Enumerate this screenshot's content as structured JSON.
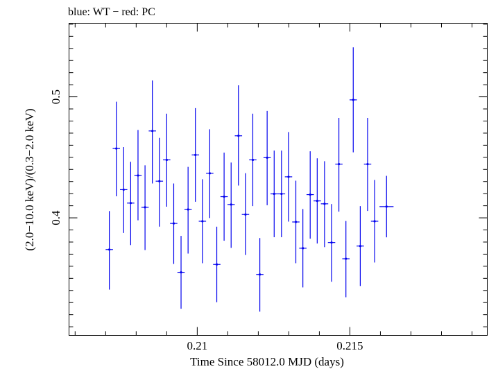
{
  "chart_data": {
    "type": "scatter",
    "title": "blue: WT − red: PC",
    "xlabel": "Time Since 58012.0 MJD (days)",
    "ylabel": "(2.0−10.0 keV)/(0.3−2.0 keV)",
    "xlim": [
      0.2058,
      0.2195
    ],
    "ylim": [
      0.3029,
      0.5608
    ],
    "x_ticks": [
      {
        "value": 0.21,
        "label": "0.21"
      },
      {
        "value": 0.215,
        "label": "0.215"
      }
    ],
    "y_ticks": [
      {
        "value": 0.4,
        "label": "0.4"
      },
      {
        "value": 0.5,
        "label": "0.5"
      }
    ],
    "grid": false,
    "series": [
      {
        "color": "#0000ee",
        "points": [
          {
            "x": 0.20712,
            "xerr": 0.00012,
            "y": 0.3738,
            "yerr_lo": 0.0331,
            "yerr_hi": 0.0318
          },
          {
            "x": 0.20735,
            "xerr": 0.00012,
            "y": 0.4573,
            "yerr_lo": 0.0395,
            "yerr_hi": 0.0387
          },
          {
            "x": 0.20759,
            "xerr": 0.00012,
            "y": 0.4233,
            "yerr_lo": 0.0358,
            "yerr_hi": 0.0352
          },
          {
            "x": 0.20782,
            "xerr": 0.00012,
            "y": 0.4122,
            "yerr_lo": 0.0347,
            "yerr_hi": 0.0341
          },
          {
            "x": 0.20806,
            "xerr": 0.00012,
            "y": 0.435,
            "yerr_lo": 0.037,
            "yerr_hi": 0.0376
          },
          {
            "x": 0.20829,
            "xerr": 0.00012,
            "y": 0.4087,
            "yerr_lo": 0.0353,
            "yerr_hi": 0.0347
          },
          {
            "x": 0.20853,
            "xerr": 0.00012,
            "y": 0.4718,
            "yerr_lo": 0.0434,
            "yerr_hi": 0.0417
          },
          {
            "x": 0.20876,
            "xerr": 0.00012,
            "y": 0.4303,
            "yerr_lo": 0.0376,
            "yerr_hi": 0.0358
          },
          {
            "x": 0.209,
            "xerr": 0.00012,
            "y": 0.4479,
            "yerr_lo": 0.0387,
            "yerr_hi": 0.0382
          },
          {
            "x": 0.20923,
            "xerr": 0.00012,
            "y": 0.3954,
            "yerr_lo": 0.0335,
            "yerr_hi": 0.033
          },
          {
            "x": 0.20947,
            "xerr": 0.00012,
            "y": 0.355,
            "yerr_lo": 0.0301,
            "yerr_hi": 0.0301
          },
          {
            "x": 0.2097,
            "xerr": 0.00012,
            "y": 0.4069,
            "yerr_lo": 0.0364,
            "yerr_hi": 0.0352
          },
          {
            "x": 0.20994,
            "xerr": 0.00012,
            "y": 0.452,
            "yerr_lo": 0.0387,
            "yerr_hi": 0.0387
          },
          {
            "x": 0.21017,
            "xerr": 0.00012,
            "y": 0.3972,
            "yerr_lo": 0.0347,
            "yerr_hi": 0.0347
          },
          {
            "x": 0.21041,
            "xerr": 0.00012,
            "y": 0.4368,
            "yerr_lo": 0.037,
            "yerr_hi": 0.0364
          },
          {
            "x": 0.21064,
            "xerr": 0.00012,
            "y": 0.3615,
            "yerr_lo": 0.0312,
            "yerr_hi": 0.0312
          },
          {
            "x": 0.21088,
            "xerr": 0.00012,
            "y": 0.4175,
            "yerr_lo": 0.0364,
            "yerr_hi": 0.0364
          },
          {
            "x": 0.21111,
            "xerr": 0.00012,
            "y": 0.411,
            "yerr_lo": 0.0358,
            "yerr_hi": 0.0347
          },
          {
            "x": 0.21135,
            "xerr": 0.00012,
            "y": 0.4678,
            "yerr_lo": 0.0411,
            "yerr_hi": 0.0417
          },
          {
            "x": 0.21158,
            "xerr": 0.00012,
            "y": 0.4028,
            "yerr_lo": 0.0335,
            "yerr_hi": 0.0341
          },
          {
            "x": 0.21182,
            "xerr": 0.00012,
            "y": 0.4479,
            "yerr_lo": 0.0382,
            "yerr_hi": 0.0382
          },
          {
            "x": 0.21205,
            "xerr": 0.00012,
            "y": 0.3532,
            "yerr_lo": 0.0307,
            "yerr_hi": 0.0301
          },
          {
            "x": 0.21229,
            "xerr": 0.00012,
            "y": 0.4497,
            "yerr_lo": 0.0393,
            "yerr_hi": 0.0387
          },
          {
            "x": 0.21252,
            "xerr": 0.00012,
            "y": 0.4198,
            "yerr_lo": 0.0358,
            "yerr_hi": 0.0358
          },
          {
            "x": 0.21276,
            "xerr": 0.00012,
            "y": 0.4198,
            "yerr_lo": 0.0358,
            "yerr_hi": 0.0358
          },
          {
            "x": 0.21299,
            "xerr": 0.00012,
            "y": 0.4339,
            "yerr_lo": 0.037,
            "yerr_hi": 0.037
          },
          {
            "x": 0.21323,
            "xerr": 0.00012,
            "y": 0.3966,
            "yerr_lo": 0.0341,
            "yerr_hi": 0.0341
          },
          {
            "x": 0.21346,
            "xerr": 0.00012,
            "y": 0.3749,
            "yerr_lo": 0.0324,
            "yerr_hi": 0.0324
          },
          {
            "x": 0.2137,
            "xerr": 0.00012,
            "y": 0.4192,
            "yerr_lo": 0.0364,
            "yerr_hi": 0.0358
          },
          {
            "x": 0.21393,
            "xerr": 0.00012,
            "y": 0.414,
            "yerr_lo": 0.0352,
            "yerr_hi": 0.0352
          },
          {
            "x": 0.21417,
            "xerr": 0.00012,
            "y": 0.4116,
            "yerr_lo": 0.0358,
            "yerr_hi": 0.0352
          },
          {
            "x": 0.2144,
            "xerr": 0.00012,
            "y": 0.3796,
            "yerr_lo": 0.0324,
            "yerr_hi": 0.0318
          },
          {
            "x": 0.21464,
            "xerr": 0.00012,
            "y": 0.4444,
            "yerr_lo": 0.0393,
            "yerr_hi": 0.0382
          },
          {
            "x": 0.21487,
            "xerr": 0.00012,
            "y": 0.3662,
            "yerr_lo": 0.0318,
            "yerr_hi": 0.0312
          },
          {
            "x": 0.21511,
            "xerr": 0.00012,
            "y": 0.4975,
            "yerr_lo": 0.0434,
            "yerr_hi": 0.0434
          },
          {
            "x": 0.21534,
            "xerr": 0.00012,
            "y": 0.3767,
            "yerr_lo": 0.033,
            "yerr_hi": 0.033
          },
          {
            "x": 0.21558,
            "xerr": 0.00012,
            "y": 0.4444,
            "yerr_lo": 0.0387,
            "yerr_hi": 0.0382
          },
          {
            "x": 0.21581,
            "xerr": 0.00012,
            "y": 0.3972,
            "yerr_lo": 0.0341,
            "yerr_hi": 0.0341
          },
          {
            "x": 0.2162,
            "xerr": 0.00023,
            "y": 0.4093,
            "yerr_lo": 0.0254,
            "yerr_hi": 0.0254
          }
        ]
      }
    ]
  }
}
